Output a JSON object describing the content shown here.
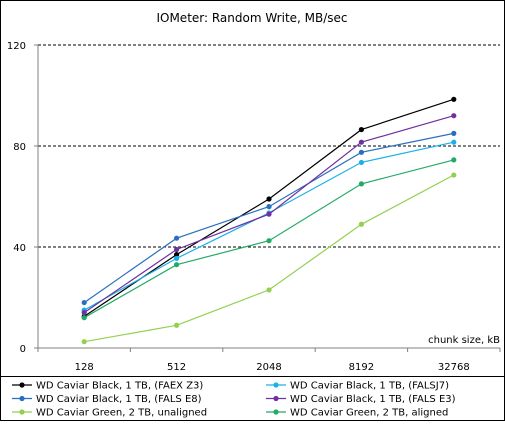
{
  "chart_data": {
    "type": "line",
    "title": "IOMeter: Random  Write, MB/sec",
    "xlabel": "chunk size, kB",
    "ylabel": "",
    "categories": [
      "128",
      "512",
      "2048",
      "8192",
      "32768"
    ],
    "ylim": [
      0,
      120
    ],
    "yticks": [
      0,
      40,
      80,
      120
    ],
    "grid": "horizontal dashed at 40, 80, 120",
    "legend_position": "bottom",
    "series": [
      {
        "name": "WD Caviar Black, 1 TB, (FAEX Z3)",
        "color": "#000000",
        "values": [
          12.5,
          37,
          59,
          86.5,
          98.5
        ]
      },
      {
        "name": "WD Caviar Black, 1 TB, (FALSJ7)",
        "color": "#1ab0e8",
        "values": [
          15,
          35.5,
          53.5,
          73.5,
          81.5
        ]
      },
      {
        "name": "WD Caviar Black, 1 TB, (FALS E8)",
        "color": "#2a6fbf",
        "values": [
          18,
          43.5,
          56,
          77.5,
          85
        ]
      },
      {
        "name": "WD Caviar Black, 1 TB, (FALS E3)",
        "color": "#7030a0",
        "values": [
          14,
          39,
          53,
          81.5,
          92
        ]
      },
      {
        "name": "WD Caviar Green, 2 TB, unaligned",
        "color": "#92d050",
        "values": [
          2.5,
          9,
          23,
          49,
          68.5
        ]
      },
      {
        "name": "WD Caviar Green, 2 TB, aligned",
        "color": "#22aa66",
        "values": [
          12,
          33,
          42.5,
          65,
          74.5
        ]
      }
    ]
  }
}
